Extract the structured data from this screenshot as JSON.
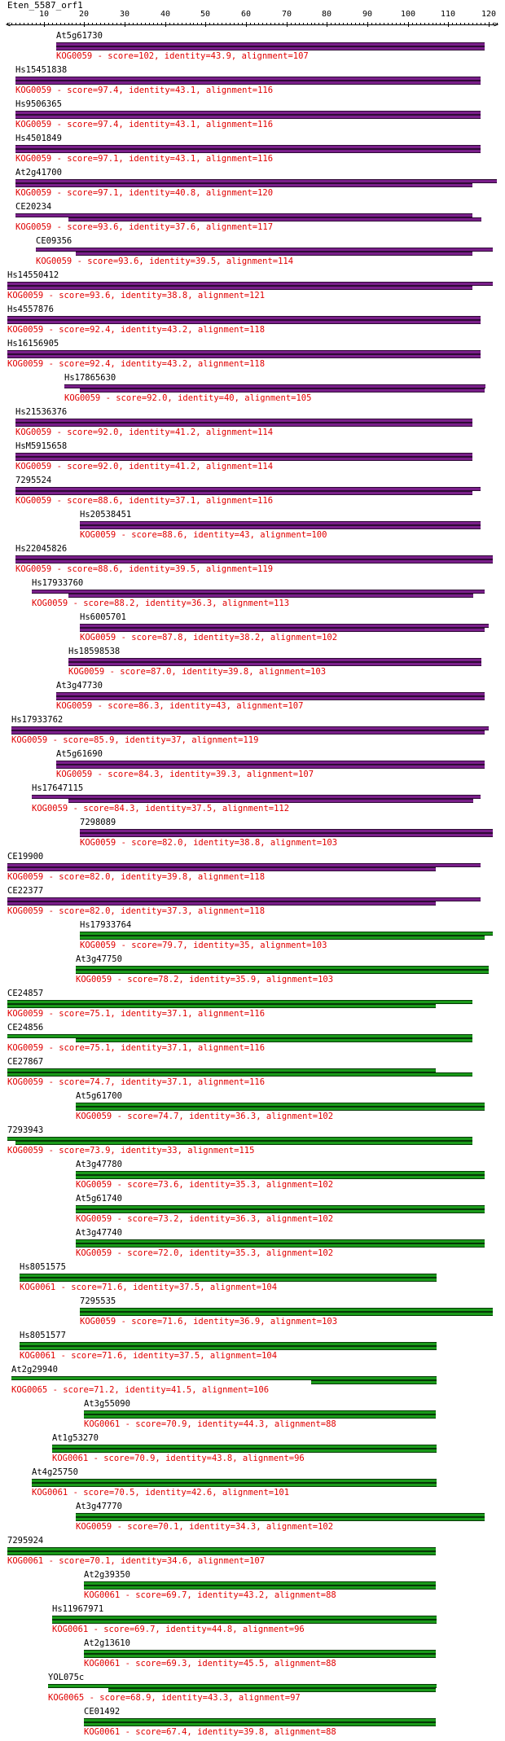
{
  "title": "Eten_5587_orf1",
  "axis": {
    "min": 1,
    "max": 122,
    "ticks": [
      10,
      20,
      30,
      40,
      50,
      60,
      70,
      80,
      90,
      100,
      110,
      120
    ]
  },
  "colors": {
    "purple": "#7a1f8a",
    "green": "#1a9a1a",
    "info_text": "#e00000"
  },
  "hits": [
    {
      "name": "At5g61730",
      "kog": "KOG0059",
      "score": "102",
      "identity": "43.9",
      "alignment": "107",
      "q": [
        13,
        119
      ],
      "s": [
        13,
        119
      ],
      "color": "purple"
    },
    {
      "name": "Hs15451838",
      "kog": "KOG0059",
      "score": "97.4",
      "identity": "43.1",
      "alignment": "116",
      "q": [
        3,
        118
      ],
      "s": [
        3,
        118
      ],
      "color": "purple"
    },
    {
      "name": "Hs9506365",
      "kog": "KOG0059",
      "score": "97.4",
      "identity": "43.1",
      "alignment": "116",
      "q": [
        3,
        118
      ],
      "s": [
        3,
        118
      ],
      "color": "purple"
    },
    {
      "name": "Hs4501849",
      "kog": "KOG0059",
      "score": "97.1",
      "identity": "43.1",
      "alignment": "116",
      "q": [
        3,
        118
      ],
      "s": [
        3,
        118
      ],
      "color": "purple"
    },
    {
      "name": "At2g41700",
      "kog": "KOG0059",
      "score": "97.1",
      "identity": "40.8",
      "alignment": "120",
      "q": [
        3,
        122
      ],
      "s": [
        3,
        116
      ],
      "color": "purple"
    },
    {
      "name": "CE20234",
      "kog": "KOG0059",
      "score": "93.6",
      "identity": "37.6",
      "alignment": "117",
      "q": [
        3,
        116
      ],
      "s": [
        16,
        118
      ],
      "color": "purple"
    },
    {
      "name": "CE09356",
      "kog": "KOG0059",
      "score": "93.6",
      "identity": "39.5",
      "alignment": "114",
      "q": [
        8,
        121
      ],
      "s": [
        18,
        116
      ],
      "color": "purple"
    },
    {
      "name": "Hs14550412",
      "kog": "KOG0059",
      "score": "93.6",
      "identity": "38.8",
      "alignment": "121",
      "q": [
        1,
        121
      ],
      "s": [
        1,
        116
      ],
      "color": "purple"
    },
    {
      "name": "Hs4557876",
      "kog": "KOG0059",
      "score": "92.4",
      "identity": "43.2",
      "alignment": "118",
      "q": [
        1,
        118
      ],
      "s": [
        1,
        118
      ],
      "color": "purple"
    },
    {
      "name": "Hs16156905",
      "kog": "KOG0059",
      "score": "92.4",
      "identity": "43.2",
      "alignment": "118",
      "q": [
        1,
        118
      ],
      "s": [
        1,
        118
      ],
      "color": "purple"
    },
    {
      "name": "Hs17865630",
      "kog": "KOG0059",
      "score": "92.0",
      "identity": "40",
      "alignment": "105",
      "q": [
        15,
        119
      ],
      "s": [
        19,
        119
      ],
      "color": "purple"
    },
    {
      "name": "Hs21536376",
      "kog": "KOG0059",
      "score": "92.0",
      "identity": "41.2",
      "alignment": "114",
      "q": [
        3,
        116
      ],
      "s": [
        3,
        116
      ],
      "color": "purple"
    },
    {
      "name": "HsM5915658",
      "kog": "KOG0059",
      "score": "92.0",
      "identity": "41.2",
      "alignment": "114",
      "q": [
        3,
        116
      ],
      "s": [
        3,
        116
      ],
      "color": "purple"
    },
    {
      "name": "7295524",
      "kog": "KOG0059",
      "score": "88.6",
      "identity": "37.1",
      "alignment": "116",
      "q": [
        3,
        118
      ],
      "s": [
        3,
        116
      ],
      "color": "purple"
    },
    {
      "name": "Hs20538451",
      "kog": "KOG0059",
      "score": "88.6",
      "identity": "43",
      "alignment": "100",
      "q": [
        19,
        118
      ],
      "s": [
        19,
        118
      ],
      "color": "purple"
    },
    {
      "name": "Hs22045826",
      "kog": "KOG0059",
      "score": "88.6",
      "identity": "39.5",
      "alignment": "119",
      "q": [
        3,
        121
      ],
      "s": [
        3,
        121
      ],
      "color": "purple"
    },
    {
      "name": "Hs17933760",
      "kog": "KOG0059",
      "score": "88.2",
      "identity": "36.3",
      "alignment": "113",
      "q": [
        7,
        119
      ],
      "s": [
        16,
        116
      ],
      "color": "purple"
    },
    {
      "name": "Hs6005701",
      "kog": "KOG0059",
      "score": "87.8",
      "identity": "38.2",
      "alignment": "102",
      "q": [
        19,
        120
      ],
      "s": [
        19,
        119
      ],
      "color": "purple"
    },
    {
      "name": "Hs18598538",
      "kog": "KOG0059",
      "score": "87.0",
      "identity": "39.8",
      "alignment": "103",
      "q": [
        16,
        118
      ],
      "s": [
        16,
        118
      ],
      "color": "purple"
    },
    {
      "name": "At3g47730",
      "kog": "KOG0059",
      "score": "86.3",
      "identity": "43",
      "alignment": "107",
      "q": [
        13,
        119
      ],
      "s": [
        13,
        119
      ],
      "color": "purple"
    },
    {
      "name": "Hs17933762",
      "kog": "KOG0059",
      "score": "85.9",
      "identity": "37",
      "alignment": "119",
      "q": [
        2,
        120
      ],
      "s": [
        2,
        119
      ],
      "color": "purple"
    },
    {
      "name": "At5g61690",
      "kog": "KOG0059",
      "score": "84.3",
      "identity": "39.3",
      "alignment": "107",
      "q": [
        13,
        119
      ],
      "s": [
        13,
        119
      ],
      "color": "purple"
    },
    {
      "name": "Hs17647115",
      "kog": "KOG0059",
      "score": "84.3",
      "identity": "37.5",
      "alignment": "112",
      "q": [
        7,
        118
      ],
      "s": [
        16,
        116
      ],
      "color": "purple"
    },
    {
      "name": "7298089",
      "kog": "KOG0059",
      "score": "82.0",
      "identity": "38.8",
      "alignment": "103",
      "q": [
        19,
        121
      ],
      "s": [
        19,
        121
      ],
      "color": "purple"
    },
    {
      "name": "CE19900",
      "kog": "KOG0059",
      "score": "82.0",
      "identity": "39.8",
      "alignment": "118",
      "q": [
        1,
        118
      ],
      "s": [
        1,
        107
      ],
      "color": "purple"
    },
    {
      "name": "CE22377",
      "kog": "KOG0059",
      "score": "82.0",
      "identity": "37.3",
      "alignment": "118",
      "q": [
        1,
        118
      ],
      "s": [
        1,
        107
      ],
      "color": "purple"
    },
    {
      "name": "Hs17933764",
      "kog": "KOG0059",
      "score": "79.7",
      "identity": "35",
      "alignment": "103",
      "q": [
        19,
        121
      ],
      "s": [
        19,
        119
      ],
      "color": "green"
    },
    {
      "name": "At3g47750",
      "kog": "KOG0059",
      "score": "78.2",
      "identity": "35.9",
      "alignment": "103",
      "q": [
        18,
        120
      ],
      "s": [
        18,
        120
      ],
      "color": "green"
    },
    {
      "name": "CE24857",
      "kog": "KOG0059",
      "score": "75.1",
      "identity": "37.1",
      "alignment": "116",
      "q": [
        1,
        116
      ],
      "s": [
        1,
        107
      ],
      "color": "green"
    },
    {
      "name": "CE24856",
      "kog": "KOG0059",
      "score": "75.1",
      "identity": "37.1",
      "alignment": "116",
      "q": [
        1,
        116
      ],
      "s": [
        18,
        116
      ],
      "color": "green"
    },
    {
      "name": "CE27867",
      "kog": "KOG0059",
      "score": "74.7",
      "identity": "37.1",
      "alignment": "116",
      "q": [
        1,
        107
      ],
      "s": [
        1,
        116
      ],
      "color": "green"
    },
    {
      "name": "At5g61700",
      "kog": "KOG0059",
      "score": "74.7",
      "identity": "36.3",
      "alignment": "102",
      "q": [
        18,
        119
      ],
      "s": [
        18,
        119
      ],
      "color": "green"
    },
    {
      "name": "7293943",
      "kog": "KOG0059",
      "score": "73.9",
      "identity": "33",
      "alignment": "115",
      "q": [
        1,
        116
      ],
      "s": [
        3,
        116
      ],
      "color": "green"
    },
    {
      "name": "At3g47780",
      "kog": "KOG0059",
      "score": "73.6",
      "identity": "35.3",
      "alignment": "102",
      "q": [
        18,
        119
      ],
      "s": [
        18,
        119
      ],
      "color": "green"
    },
    {
      "name": "At5g61740",
      "kog": "KOG0059",
      "score": "73.2",
      "identity": "36.3",
      "alignment": "102",
      "q": [
        18,
        119
      ],
      "s": [
        18,
        119
      ],
      "color": "green"
    },
    {
      "name": "At3g47740",
      "kog": "KOG0059",
      "score": "72.0",
      "identity": "35.3",
      "alignment": "102",
      "q": [
        18,
        119
      ],
      "s": [
        18,
        119
      ],
      "color": "green"
    },
    {
      "name": "Hs8051575",
      "kog": "KOG0061",
      "score": "71.6",
      "identity": "37.5",
      "alignment": "104",
      "q": [
        4,
        107
      ],
      "s": [
        4,
        107
      ],
      "color": "green"
    },
    {
      "name": "7295535",
      "kog": "KOG0059",
      "score": "71.6",
      "identity": "36.9",
      "alignment": "103",
      "q": [
        19,
        121
      ],
      "s": [
        19,
        121
      ],
      "color": "green"
    },
    {
      "name": "Hs8051577",
      "kog": "KOG0061",
      "score": "71.6",
      "identity": "37.5",
      "alignment": "104",
      "q": [
        4,
        107
      ],
      "s": [
        4,
        107
      ],
      "color": "green"
    },
    {
      "name": "At2g29940",
      "kog": "KOG0065",
      "score": "71.2",
      "identity": "41.5",
      "alignment": "106",
      "q": [
        2,
        107
      ],
      "s": [
        76,
        107
      ],
      "color": "green"
    },
    {
      "name": "At3g55090",
      "kog": "KOG0061",
      "score": "70.9",
      "identity": "44.3",
      "alignment": "88",
      "q": [
        20,
        107
      ],
      "s": [
        20,
        107
      ],
      "color": "green"
    },
    {
      "name": "At1g53270",
      "kog": "KOG0061",
      "score": "70.9",
      "identity": "43.8",
      "alignment": "96",
      "q": [
        12,
        107
      ],
      "s": [
        12,
        107
      ],
      "color": "green"
    },
    {
      "name": "At4g25750",
      "kog": "KOG0061",
      "score": "70.5",
      "identity": "42.6",
      "alignment": "101",
      "q": [
        7,
        107
      ],
      "s": [
        7,
        107
      ],
      "color": "green"
    },
    {
      "name": "At3g47770",
      "kog": "KOG0059",
      "score": "70.1",
      "identity": "34.3",
      "alignment": "102",
      "q": [
        18,
        119
      ],
      "s": [
        18,
        119
      ],
      "color": "green"
    },
    {
      "name": "7295924",
      "kog": "KOG0061",
      "score": "70.1",
      "identity": "34.6",
      "alignment": "107",
      "q": [
        1,
        107
      ],
      "s": [
        1,
        107
      ],
      "color": "green"
    },
    {
      "name": "At2g39350",
      "kog": "KOG0061",
      "score": "69.7",
      "identity": "43.2",
      "alignment": "88",
      "q": [
        20,
        107
      ],
      "s": [
        20,
        107
      ],
      "color": "green"
    },
    {
      "name": "Hs11967971",
      "kog": "KOG0061",
      "score": "69.7",
      "identity": "44.8",
      "alignment": "96",
      "q": [
        12,
        107
      ],
      "s": [
        12,
        107
      ],
      "color": "green"
    },
    {
      "name": "At2g13610",
      "kog": "KOG0061",
      "score": "69.3",
      "identity": "45.5",
      "alignment": "88",
      "q": [
        20,
        107
      ],
      "s": [
        20,
        107
      ],
      "color": "green"
    },
    {
      "name": "YOL075c",
      "kog": "KOG0065",
      "score": "68.9",
      "identity": "43.3",
      "alignment": "97",
      "q": [
        11,
        107
      ],
      "s": [
        26,
        107
      ],
      "color": "green"
    },
    {
      "name": "CE01492",
      "kog": "KOG0061",
      "score": "67.4",
      "identity": "39.8",
      "alignment": "88",
      "q": [
        20,
        107
      ],
      "s": [
        20,
        107
      ],
      "color": "green"
    }
  ]
}
